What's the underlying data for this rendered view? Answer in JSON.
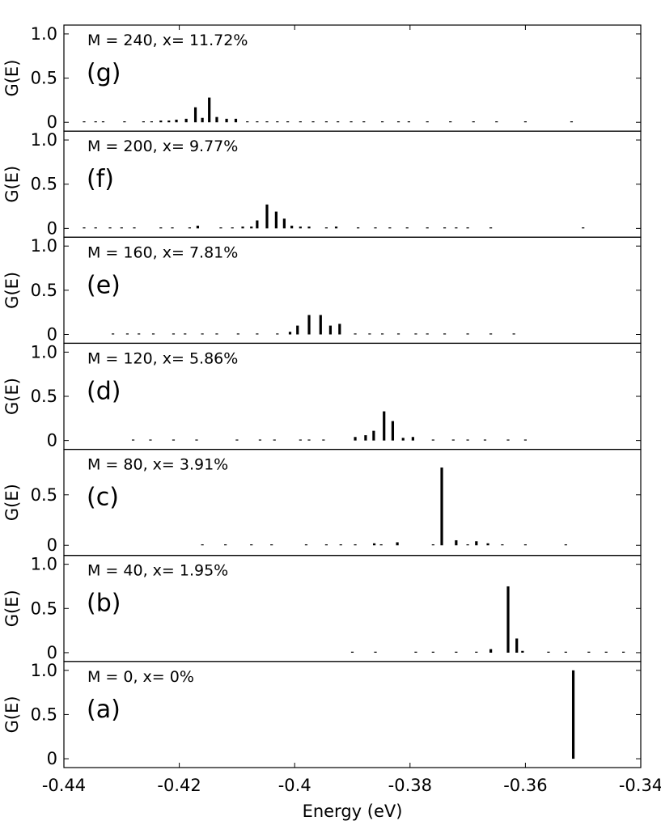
{
  "chart_data": {
    "type": "bar",
    "xlabel": "Energy (eV)",
    "xlim": [
      -0.44,
      -0.34
    ],
    "x_ticks": [
      "-0.44",
      "-0.42",
      "-0.4",
      "-0.38",
      "-0.36",
      "-0.34"
    ],
    "x_tick_values": [
      -0.44,
      -0.42,
      -0.4,
      -0.38,
      -0.36,
      -0.34
    ],
    "ylabel": "G(E)",
    "panels": [
      {
        "letter": "(g)",
        "annotation": "M = 240, x= 11.72%",
        "ylim": [
          -0.1,
          1.1
        ],
        "y_ticks": [
          "1.0",
          "0.5",
          "0"
        ],
        "y_tick_values": [
          1.0,
          0.5,
          0
        ],
        "bars": [
          {
            "x": -0.4365,
            "y": 0.005
          },
          {
            "x": -0.4345,
            "y": 0.005
          },
          {
            "x": -0.4332,
            "y": 0.005
          },
          {
            "x": -0.4295,
            "y": 0.005
          },
          {
            "x": -0.4262,
            "y": 0.01
          },
          {
            "x": -0.4248,
            "y": 0.01
          },
          {
            "x": -0.4232,
            "y": 0.02
          },
          {
            "x": -0.4218,
            "y": 0.02
          },
          {
            "x": -0.4205,
            "y": 0.03
          },
          {
            "x": -0.4188,
            "y": 0.04
          },
          {
            "x": -0.4172,
            "y": 0.17
          },
          {
            "x": -0.416,
            "y": 0.05
          },
          {
            "x": -0.4148,
            "y": 0.28
          },
          {
            "x": -0.4135,
            "y": 0.06
          },
          {
            "x": -0.4118,
            "y": 0.04
          },
          {
            "x": -0.4102,
            "y": 0.04
          },
          {
            "x": -0.4082,
            "y": 0.01
          },
          {
            "x": -0.4065,
            "y": 0.005
          },
          {
            "x": -0.4048,
            "y": 0.005
          },
          {
            "x": -0.403,
            "y": 0.005
          },
          {
            "x": -0.4012,
            "y": 0.005
          },
          {
            "x": -0.399,
            "y": 0.005
          },
          {
            "x": -0.3968,
            "y": 0.005
          },
          {
            "x": -0.3945,
            "y": 0.005
          },
          {
            "x": -0.3925,
            "y": 0.005
          },
          {
            "x": -0.3902,
            "y": 0.005
          },
          {
            "x": -0.388,
            "y": 0.005
          },
          {
            "x": -0.3848,
            "y": 0.005
          },
          {
            "x": -0.382,
            "y": 0.005
          },
          {
            "x": -0.3802,
            "y": 0.005
          },
          {
            "x": -0.377,
            "y": 0.005
          },
          {
            "x": -0.373,
            "y": 0.005
          },
          {
            "x": -0.369,
            "y": 0.005
          },
          {
            "x": -0.365,
            "y": 0.005
          },
          {
            "x": -0.36,
            "y": 0.005
          },
          {
            "x": -0.352,
            "y": 0.005
          }
        ]
      },
      {
        "letter": "(f)",
        "annotation": "M = 200, x= 9.77%",
        "ylim": [
          -0.1,
          1.1
        ],
        "y_ticks": [
          "1.0",
          "0.5",
          "0"
        ],
        "y_tick_values": [
          1.0,
          0.5,
          0
        ],
        "bars": [
          {
            "x": -0.4365,
            "y": 0.005
          },
          {
            "x": -0.4345,
            "y": 0.005
          },
          {
            "x": -0.432,
            "y": 0.005
          },
          {
            "x": -0.43,
            "y": 0.005
          },
          {
            "x": -0.4278,
            "y": 0.005
          },
          {
            "x": -0.4232,
            "y": 0.005
          },
          {
            "x": -0.4212,
            "y": 0.005
          },
          {
            "x": -0.4182,
            "y": 0.01
          },
          {
            "x": -0.4168,
            "y": 0.03
          },
          {
            "x": -0.4128,
            "y": 0.01
          },
          {
            "x": -0.4108,
            "y": 0.01
          },
          {
            "x": -0.409,
            "y": 0.02
          },
          {
            "x": -0.4075,
            "y": 0.02
          },
          {
            "x": -0.4065,
            "y": 0.09
          },
          {
            "x": -0.4048,
            "y": 0.27
          },
          {
            "x": -0.4032,
            "y": 0.19
          },
          {
            "x": -0.4018,
            "y": 0.11
          },
          {
            "x": -0.4005,
            "y": 0.03
          },
          {
            "x": -0.399,
            "y": 0.02
          },
          {
            "x": -0.3975,
            "y": 0.02
          },
          {
            "x": -0.3945,
            "y": 0.01
          },
          {
            "x": -0.3928,
            "y": 0.02
          },
          {
            "x": -0.389,
            "y": 0.005
          },
          {
            "x": -0.386,
            "y": 0.005
          },
          {
            "x": -0.3835,
            "y": 0.005
          },
          {
            "x": -0.3805,
            "y": 0.005
          },
          {
            "x": -0.377,
            "y": 0.005
          },
          {
            "x": -0.374,
            "y": 0.005
          },
          {
            "x": -0.372,
            "y": 0.005
          },
          {
            "x": -0.37,
            "y": 0.005
          },
          {
            "x": -0.366,
            "y": 0.005
          },
          {
            "x": -0.35,
            "y": 0.005
          }
        ]
      },
      {
        "letter": "(e)",
        "annotation": "M = 160, x= 7.81%",
        "ylim": [
          -0.1,
          1.1
        ],
        "y_ticks": [
          "1.0",
          "0.5",
          "0"
        ],
        "y_tick_values": [
          1.0,
          0.5,
          0
        ],
        "bars": [
          {
            "x": -0.4315,
            "y": 0.005
          },
          {
            "x": -0.429,
            "y": 0.005
          },
          {
            "x": -0.427,
            "y": 0.005
          },
          {
            "x": -0.4245,
            "y": 0.005
          },
          {
            "x": -0.421,
            "y": 0.005
          },
          {
            "x": -0.419,
            "y": 0.005
          },
          {
            "x": -0.416,
            "y": 0.005
          },
          {
            "x": -0.4135,
            "y": 0.005
          },
          {
            "x": -0.4098,
            "y": 0.005
          },
          {
            "x": -0.4065,
            "y": 0.005
          },
          {
            "x": -0.403,
            "y": 0.005
          },
          {
            "x": -0.4008,
            "y": 0.03
          },
          {
            "x": -0.3995,
            "y": 0.1
          },
          {
            "x": -0.3975,
            "y": 0.22
          },
          {
            "x": -0.3955,
            "y": 0.22
          },
          {
            "x": -0.3938,
            "y": 0.1
          },
          {
            "x": -0.3922,
            "y": 0.12
          },
          {
            "x": -0.3895,
            "y": 0.005
          },
          {
            "x": -0.387,
            "y": 0.005
          },
          {
            "x": -0.3848,
            "y": 0.005
          },
          {
            "x": -0.382,
            "y": 0.005
          },
          {
            "x": -0.379,
            "y": 0.005
          },
          {
            "x": -0.377,
            "y": 0.005
          },
          {
            "x": -0.374,
            "y": 0.005
          },
          {
            "x": -0.37,
            "y": 0.005
          },
          {
            "x": -0.366,
            "y": 0.005
          },
          {
            "x": -0.362,
            "y": 0.005
          }
        ]
      },
      {
        "letter": "(d)",
        "annotation": "M = 120, x= 5.86%",
        "ylim": [
          -0.1,
          1.1
        ],
        "y_ticks": [
          "1.0",
          "0.5",
          "0"
        ],
        "y_tick_values": [
          1.0,
          0.5,
          0
        ],
        "bars": [
          {
            "x": -0.428,
            "y": 0.005
          },
          {
            "x": -0.425,
            "y": 0.005
          },
          {
            "x": -0.421,
            "y": 0.005
          },
          {
            "x": -0.417,
            "y": 0.005
          },
          {
            "x": -0.41,
            "y": 0.005
          },
          {
            "x": -0.406,
            "y": 0.005
          },
          {
            "x": -0.4035,
            "y": 0.005
          },
          {
            "x": -0.399,
            "y": 0.005
          },
          {
            "x": -0.3975,
            "y": 0.005
          },
          {
            "x": -0.395,
            "y": 0.005
          },
          {
            "x": -0.3895,
            "y": 0.04
          },
          {
            "x": -0.3877,
            "y": 0.06
          },
          {
            "x": -0.3863,
            "y": 0.11
          },
          {
            "x": -0.3845,
            "y": 0.33
          },
          {
            "x": -0.383,
            "y": 0.22
          },
          {
            "x": -0.3812,
            "y": 0.03
          },
          {
            "x": -0.3795,
            "y": 0.04
          },
          {
            "x": -0.376,
            "y": 0.005
          },
          {
            "x": -0.3725,
            "y": 0.005
          },
          {
            "x": -0.37,
            "y": 0.005
          },
          {
            "x": -0.367,
            "y": 0.005
          },
          {
            "x": -0.363,
            "y": 0.005
          },
          {
            "x": -0.36,
            "y": 0.005
          }
        ]
      },
      {
        "letter": "(c)",
        "annotation": "M = 80, x= 3.91%",
        "ylim": [
          -0.1,
          0.95
        ],
        "y_ticks": [
          "0.5",
          "0"
        ],
        "y_tick_values": [
          0.5,
          0
        ],
        "bars": [
          {
            "x": -0.416,
            "y": 0.005
          },
          {
            "x": -0.412,
            "y": 0.005
          },
          {
            "x": -0.4075,
            "y": 0.005
          },
          {
            "x": -0.404,
            "y": 0.005
          },
          {
            "x": -0.398,
            "y": 0.005
          },
          {
            "x": -0.3945,
            "y": 0.005
          },
          {
            "x": -0.392,
            "y": 0.005
          },
          {
            "x": -0.3895,
            "y": 0.01
          },
          {
            "x": -0.3862,
            "y": 0.02
          },
          {
            "x": -0.385,
            "y": 0.01
          },
          {
            "x": -0.3822,
            "y": 0.03
          },
          {
            "x": -0.376,
            "y": 0.005
          },
          {
            "x": -0.3745,
            "y": 0.77
          },
          {
            "x": -0.372,
            "y": 0.05
          },
          {
            "x": -0.37,
            "y": 0.005
          },
          {
            "x": -0.3685,
            "y": 0.04
          },
          {
            "x": -0.3665,
            "y": 0.02
          },
          {
            "x": -0.364,
            "y": 0.005
          },
          {
            "x": -0.36,
            "y": 0.005
          },
          {
            "x": -0.353,
            "y": 0.005
          }
        ]
      },
      {
        "letter": "(b)",
        "annotation": "M = 40, x= 1.95%",
        "ylim": [
          -0.1,
          1.1
        ],
        "y_ticks": [
          "1.0",
          "0.5",
          "0"
        ],
        "y_tick_values": [
          1.0,
          0.5,
          0
        ],
        "bars": [
          {
            "x": -0.39,
            "y": 0.005
          },
          {
            "x": -0.386,
            "y": 0.005
          },
          {
            "x": -0.379,
            "y": 0.005
          },
          {
            "x": -0.376,
            "y": 0.005
          },
          {
            "x": -0.372,
            "y": 0.005
          },
          {
            "x": -0.3685,
            "y": 0.005
          },
          {
            "x": -0.366,
            "y": 0.04
          },
          {
            "x": -0.363,
            "y": 0.75
          },
          {
            "x": -0.3615,
            "y": 0.16
          },
          {
            "x": -0.3605,
            "y": 0.02
          },
          {
            "x": -0.356,
            "y": 0.005
          },
          {
            "x": -0.353,
            "y": 0.005
          },
          {
            "x": -0.349,
            "y": 0.005
          },
          {
            "x": -0.346,
            "y": 0.005
          },
          {
            "x": -0.343,
            "y": 0.005
          }
        ]
      },
      {
        "letter": "(a)",
        "annotation": "M = 0, x= 0%",
        "ylim": [
          -0.1,
          1.1
        ],
        "y_ticks": [
          "1.0",
          "0.5",
          "0"
        ],
        "y_tick_values": [
          1.0,
          0.5,
          0
        ],
        "bars": [
          {
            "x": -0.3517,
            "y": 1.0
          }
        ]
      }
    ]
  }
}
